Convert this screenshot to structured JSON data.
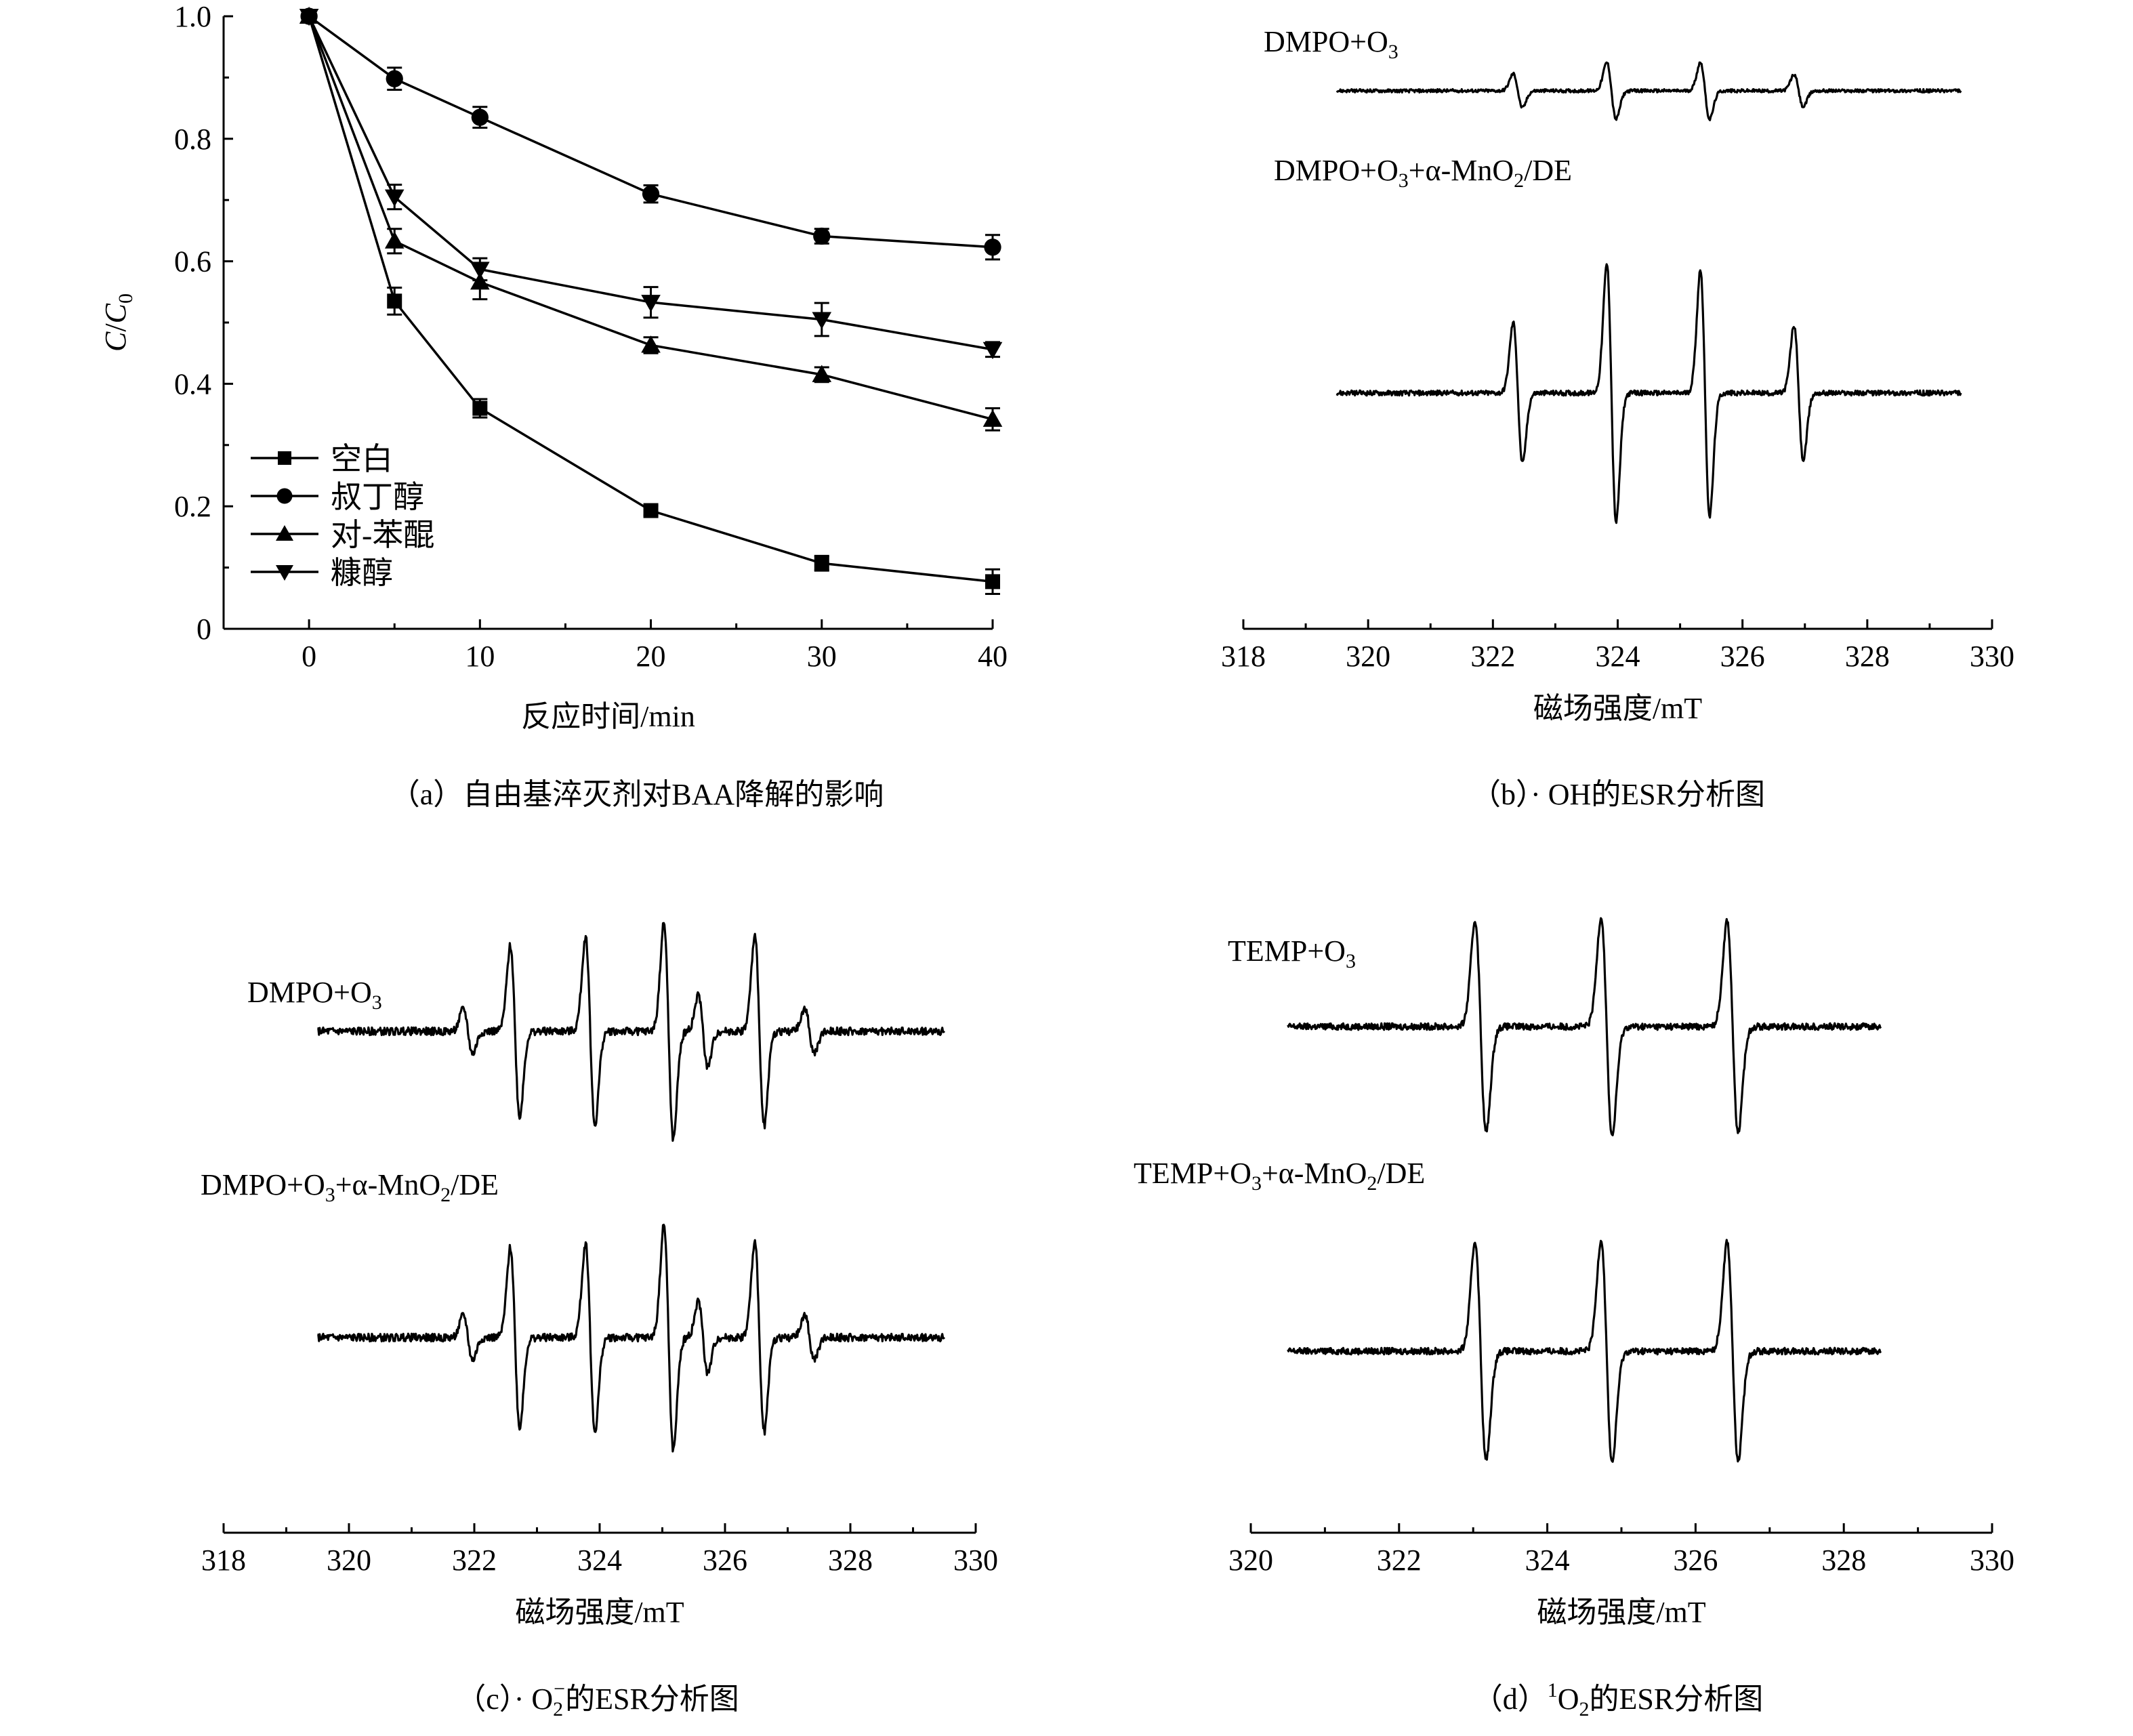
{
  "chart_data": [
    {
      "id": "a",
      "type": "line",
      "caption": "（a）自由基淬灭剂对BAA降解的影响",
      "xlabel": "反应时间/min",
      "ylabel_main": "C",
      "ylabel_sep": "/",
      "ylabel_c": "C",
      "ylabel_sub": "0",
      "xlim": [
        -5,
        40
      ],
      "ylim": [
        0,
        1.0
      ],
      "xticks": [
        0,
        10,
        20,
        30,
        40
      ],
      "yticks": [
        0,
        0.2,
        0.4,
        0.6,
        0.8,
        1.0
      ],
      "ytick_labels": [
        "0",
        "0.2",
        "0.4",
        "0.6",
        "0.8",
        "1.0"
      ],
      "legend_position": "bottom-left",
      "x": [
        0,
        5,
        10,
        20,
        30,
        40
      ],
      "series": [
        {
          "name": "空白",
          "marker": "square",
          "values": [
            1.0,
            0.535,
            0.36,
            0.193,
            0.107,
            0.077
          ],
          "err": [
            0,
            0.022,
            0.015,
            0.008,
            0.012,
            0.02
          ]
        },
        {
          "name": "叔丁醇",
          "marker": "circle",
          "values": [
            1.0,
            0.898,
            0.835,
            0.71,
            0.641,
            0.623
          ],
          "err": [
            0,
            0.018,
            0.017,
            0.014,
            0.012,
            0.02
          ]
        },
        {
          "name": "对-苯醌",
          "marker": "triangle-up",
          "values": [
            1.0,
            0.633,
            0.566,
            0.463,
            0.415,
            0.342
          ],
          "err": [
            0,
            0.02,
            0.028,
            0.013,
            0.012,
            0.018
          ]
        },
        {
          "name": "糠醇",
          "marker": "triangle-down",
          "values": [
            1.0,
            0.705,
            0.587,
            0.533,
            0.505,
            0.456
          ],
          "err": [
            0,
            0.02,
            0.018,
            0.025,
            0.027,
            0.012
          ]
        }
      ]
    },
    {
      "id": "b",
      "type": "line",
      "caption": "（b）· OH的ESR分析图",
      "xlabel": "磁场强度/mT",
      "xlim": [
        318,
        330
      ],
      "xticks": [
        318,
        320,
        322,
        324,
        326,
        328,
        330
      ],
      "series": [
        {
          "name": "DMPO+O3",
          "label_main": "DMPO+O",
          "label_sub": "3",
          "label_tail": "",
          "x_range": [
            319.5,
            329.5
          ],
          "baseline": 0,
          "peaks": [
            {
              "center": 322.4,
              "amp": 0.9
            },
            {
              "center": 323.9,
              "amp": 1.5
            },
            {
              "center": 325.4,
              "amp": 1.5
            },
            {
              "center": 326.9,
              "amp": 0.85
            }
          ]
        },
        {
          "name": "DMPO+O3+α-MnO2/DE",
          "label_main": "DMPO+O",
          "label_sub": "3",
          "label_tail": "+α-MnO",
          "label_sub2": "2",
          "label_tail2": "/DE",
          "x_range": [
            319.5,
            329.5
          ],
          "baseline": 0,
          "peaks": [
            {
              "center": 322.4,
              "amp": 2.4
            },
            {
              "center": 323.9,
              "amp": 4.4
            },
            {
              "center": 325.4,
              "amp": 4.2
            },
            {
              "center": 326.9,
              "amp": 2.3
            }
          ]
        }
      ]
    },
    {
      "id": "c",
      "type": "line",
      "caption_main": "（c）· O",
      "caption_sub": "2",
      "caption_sup": "−",
      "caption_tail": "的ESR分析图",
      "xlabel": "磁场强度/mT",
      "xlim": [
        318,
        330
      ],
      "xticks": [
        318,
        320,
        322,
        324,
        326,
        328,
        330
      ],
      "series": [
        {
          "name": "DMPO+O3",
          "label_main": "DMPO+O",
          "label_sub": "3",
          "label_tail": "",
          "x_range": [
            319.5,
            329.5
          ],
          "baseline": 0,
          "peaks": [
            {
              "center": 321.9,
              "amp": 0.5
            },
            {
              "center": 322.65,
              "amp": 1.9
            },
            {
              "center": 323.85,
              "amp": 2.1
            },
            {
              "center": 325.1,
              "amp": 2.4
            },
            {
              "center": 325.65,
              "amp": 0.8
            },
            {
              "center": 326.55,
              "amp": 2.1
            },
            {
              "center": 327.35,
              "amp": 0.5
            }
          ]
        },
        {
          "name": "DMPO+O3+α-MnO2/DE",
          "label_main": "DMPO+O",
          "label_sub": "3",
          "label_tail": "+α-MnO",
          "label_sub2": "2",
          "label_tail2": "/DE",
          "x_range": [
            319.5,
            329.5
          ],
          "baseline": 0,
          "peaks": [
            {
              "center": 321.9,
              "amp": 0.5
            },
            {
              "center": 322.65,
              "amp": 2.0
            },
            {
              "center": 323.85,
              "amp": 2.1
            },
            {
              "center": 325.1,
              "amp": 2.5
            },
            {
              "center": 325.65,
              "amp": 0.8
            },
            {
              "center": 326.55,
              "amp": 2.1
            },
            {
              "center": 327.35,
              "amp": 0.5
            }
          ]
        }
      ]
    },
    {
      "id": "d",
      "type": "line",
      "caption_main": "（d）",
      "caption_sup": "1",
      "caption_mid": "O",
      "caption_sub": "2",
      "caption_tail": "的ESR分析图",
      "xlabel": "磁场强度/mT",
      "xlim": [
        320,
        330
      ],
      "xticks": [
        320,
        322,
        324,
        326,
        328,
        330
      ],
      "series": [
        {
          "name": "TEMP+O3",
          "label_main": "TEMP+O",
          "label_sub": "3",
          "label_tail": "",
          "x_range": [
            320.5,
            328.5
          ],
          "baseline": 0,
          "peaks": [
            {
              "center": 323.1,
              "amp": 2.8
            },
            {
              "center": 324.8,
              "amp": 2.9
            },
            {
              "center": 326.5,
              "amp": 2.8
            }
          ]
        },
        {
          "name": "TEMP+O3+α-MnO2/DE",
          "label_main": "TEMP+O",
          "label_sub": "3",
          "label_tail": "+α-MnO",
          "label_sub2": "2",
          "label_tail2": "/DE",
          "x_range": [
            320.5,
            328.5
          ],
          "baseline": 0,
          "peaks": [
            {
              "center": 323.1,
              "amp": 2.9
            },
            {
              "center": 324.8,
              "amp": 2.95
            },
            {
              "center": 326.5,
              "amp": 2.9
            }
          ]
        }
      ]
    }
  ]
}
